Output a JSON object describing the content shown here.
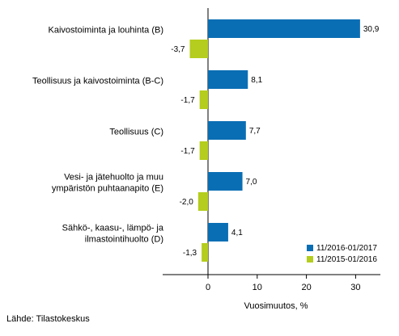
{
  "chart_data": {
    "type": "bar",
    "orientation": "horizontal",
    "categories": [
      [
        "Kaivostoiminta ja louhinta (B)"
      ],
      [
        "Teollisuus ja kaivostoiminta (B-C)"
      ],
      [
        "Teollisuus (C)"
      ],
      [
        "Vesi- ja jätehuolto ja muu",
        "ympäristön puhtaanapito (E)"
      ],
      [
        "Sähkö-, kaasu-, lämpö- ja",
        "ilmastointihuolto (D)"
      ]
    ],
    "series": [
      {
        "name": "11/2016-01/2017",
        "color": "#0a6eb4",
        "values": [
          30.9,
          8.1,
          7.7,
          7.0,
          4.1
        ],
        "labels": [
          "30,9",
          "8,1",
          "7,7",
          "7,0",
          "4,1"
        ]
      },
      {
        "name": "11/2015-01/2016",
        "color": "#b4cd1e",
        "values": [
          -3.7,
          -1.7,
          -1.7,
          -2.0,
          -1.3
        ],
        "labels": [
          "-3,7",
          "-1,7",
          "-1,7",
          "-2,0",
          "-1,3"
        ]
      }
    ],
    "xlabel": "Vuosimuutos, %",
    "xlim": [
      -8,
      35
    ],
    "xticks": [
      0,
      10,
      20,
      30
    ],
    "xtick_labels": [
      "0",
      "10",
      "20",
      "30"
    ],
    "grid": false,
    "legend_position": "bottom-right"
  },
  "source": "Lähde: Tilastokeskus"
}
